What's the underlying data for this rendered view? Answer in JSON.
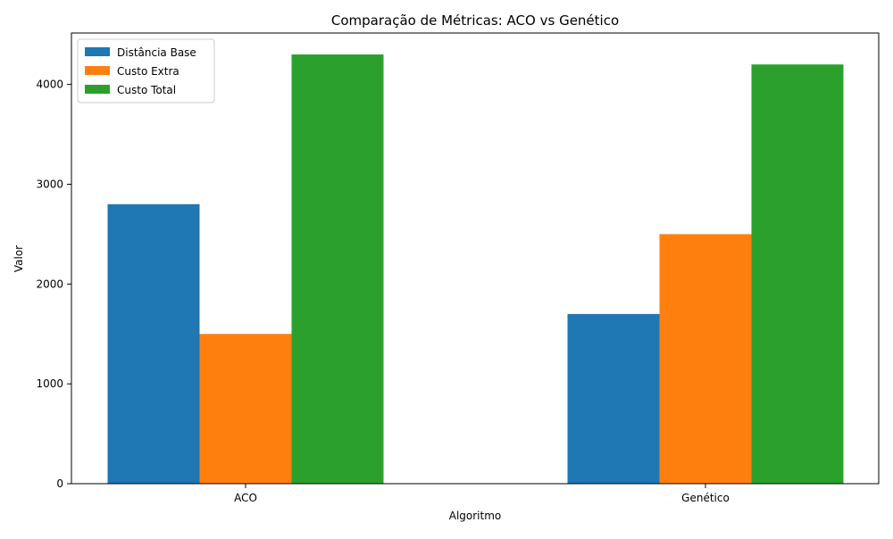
{
  "chart_data": {
    "type": "bar",
    "title": "Comparação de Métricas: ACO vs Genético",
    "xlabel": "Algoritmo",
    "ylabel": "Valor",
    "categories": [
      "ACO",
      "Genético"
    ],
    "series": [
      {
        "name": "Distância Base",
        "values": [
          2800,
          1700
        ],
        "color": "#1f77b4"
      },
      {
        "name": "Custo Extra",
        "values": [
          1500,
          2500
        ],
        "color": "#ff7f0e"
      },
      {
        "name": "Custo Total",
        "values": [
          4300,
          4200
        ],
        "color": "#2ca02c"
      }
    ],
    "ylim": [
      0,
      4515
    ],
    "yticks": [
      0,
      1000,
      2000,
      3000,
      4000
    ],
    "ytick_labels": [
      "0",
      "1000",
      "2000",
      "3000",
      "4000"
    ],
    "grid": false,
    "legend_position": "top-left"
  }
}
